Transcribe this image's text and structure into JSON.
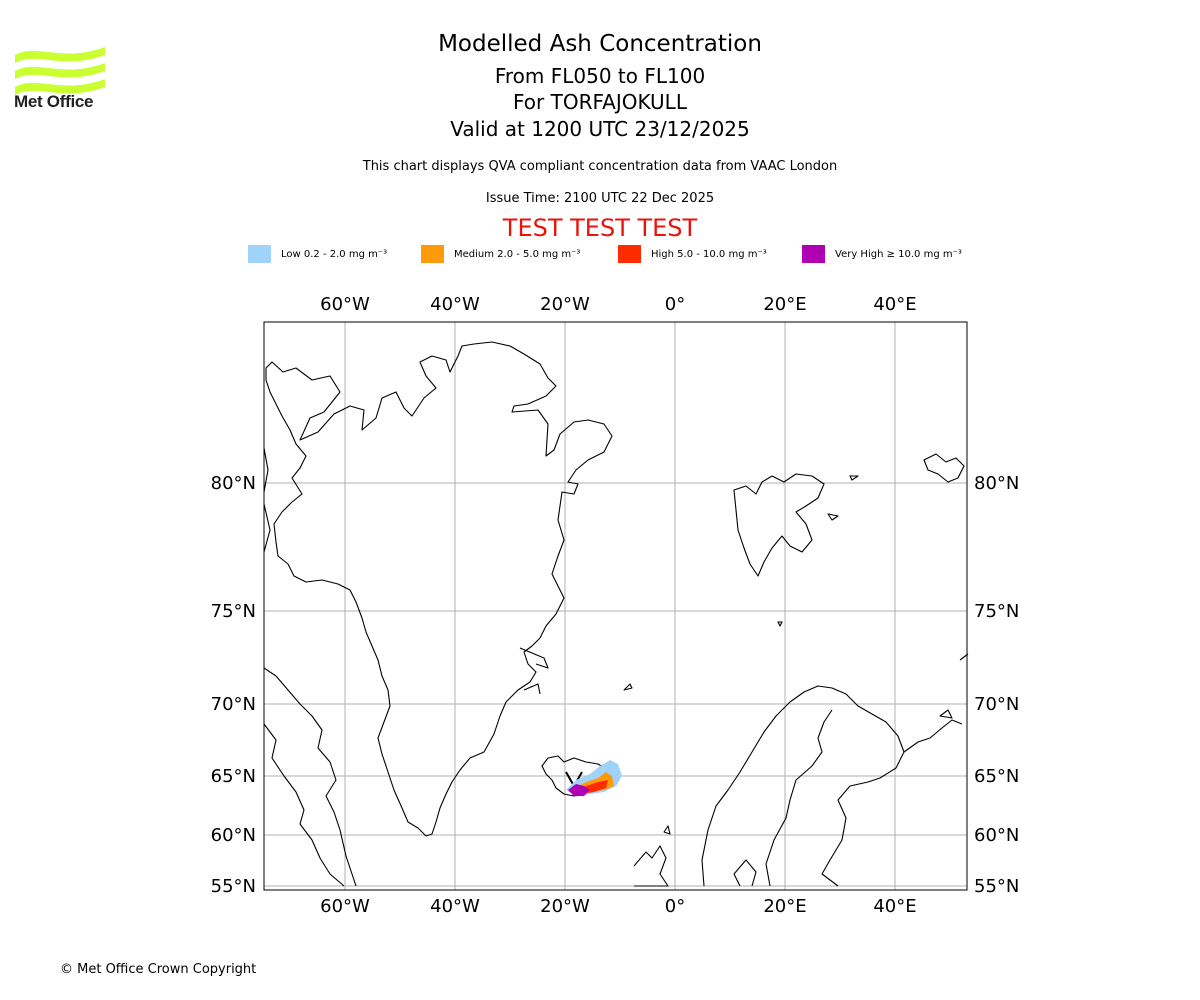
{
  "header": {
    "title": "Modelled Ash Concentration",
    "levels": "From FL050 to FL100",
    "volcano": "For TORFAJOKULL",
    "valid": "Valid at 1200 UTC 23/12/2025",
    "description": "This chart displays QVA compliant concentration data from VAAC London",
    "issue_time": "Issue Time: 2100 UTC 22 Dec 2025",
    "test_banner": "TEST TEST TEST"
  },
  "logo": {
    "text": "Met Office",
    "color": "#ccff33"
  },
  "legend": [
    {
      "label": "Low 0.2 - 2.0 mg m⁻³",
      "color": "#a0d2fa"
    },
    {
      "label": "Medium 2.0 - 5.0 mg m⁻³",
      "color": "#ff9a0a"
    },
    {
      "label": "High 5.0 - 10.0 mg m⁻³",
      "color": "#ff2c00"
    },
    {
      "label": "Very High ≥ 10.0 mg m⁻³",
      "color": "#b000b4"
    }
  ],
  "map": {
    "lon_labels": [
      "60°W",
      "40°W",
      "20°W",
      "0°",
      "20°E",
      "40°E"
    ],
    "lat_labels": [
      "80°N",
      "75°N",
      "70°N",
      "65°N",
      "60°N",
      "55°N"
    ]
  },
  "footer": {
    "copyright": "© Met Office Crown Copyright"
  }
}
